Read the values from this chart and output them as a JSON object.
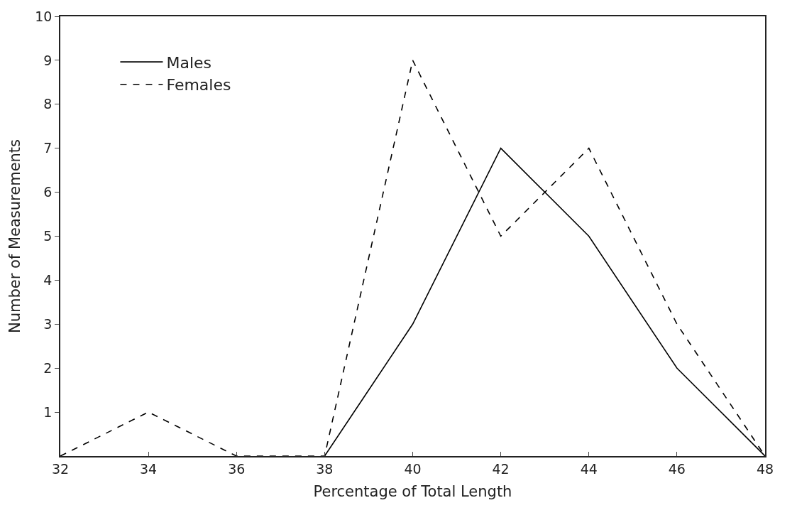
{
  "chart_data": {
    "type": "line",
    "xlabel": "Percentage of Total Length",
    "ylabel": "Number of Measurements",
    "series": [
      {
        "name": "Males",
        "color": "#000000",
        "line_style": "solid",
        "x": [
          38,
          40,
          42,
          44,
          46,
          48
        ],
        "values": [
          0,
          3,
          7,
          5,
          2,
          0
        ]
      },
      {
        "name": "Females",
        "color": "#000000",
        "line_style": "dashed",
        "x": [
          32,
          34,
          36,
          38,
          40,
          42,
          44,
          46,
          48
        ],
        "values": [
          0,
          1,
          0,
          0,
          9,
          5,
          7,
          3,
          0
        ]
      }
    ],
    "xlim": [
      32,
      48
    ],
    "xticks": [
      32,
      34,
      36,
      38,
      40,
      42,
      44,
      46,
      48
    ],
    "ylim": [
      0,
      10
    ],
    "yticks": [
      1,
      2,
      3,
      4,
      5,
      6,
      7,
      8,
      9,
      10
    ],
    "legend": "top left",
    "marker": "none"
  }
}
